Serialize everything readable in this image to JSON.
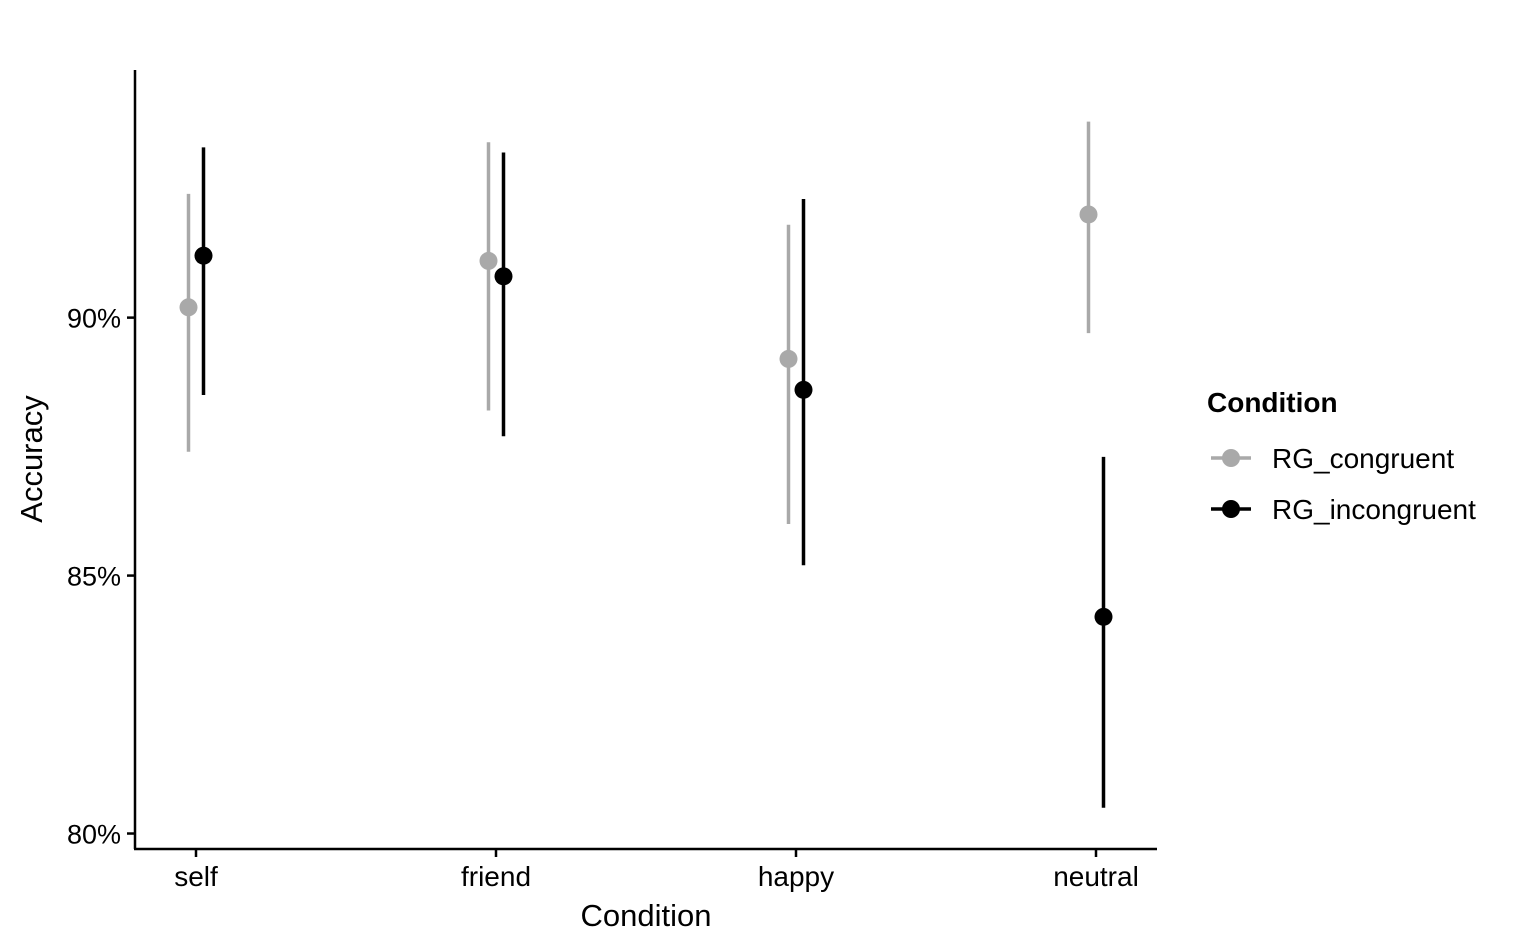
{
  "chart_data": {
    "type": "scatter",
    "subtype": "pointrange",
    "title": "",
    "xlabel": "Condition",
    "ylabel": "Accuracy",
    "categories": [
      "self",
      "friend",
      "happy",
      "neutral"
    ],
    "ylim": [
      79.7,
      94.8
    ],
    "yticks": [
      80,
      85,
      90
    ],
    "ytick_labels": [
      "80%",
      "85%",
      "90%"
    ],
    "grid": false,
    "legend": {
      "title": "Condition",
      "position": "right"
    },
    "series": [
      {
        "name": "RG_congruent",
        "color": "#a9a9a9",
        "values": [
          90.2,
          91.1,
          89.2,
          92.0
        ],
        "lower": [
          87.4,
          88.2,
          86.0,
          89.7
        ],
        "upper": [
          92.4,
          93.4,
          91.8,
          93.8
        ]
      },
      {
        "name": "RG_incongruent",
        "color": "#000000",
        "values": [
          91.2,
          90.8,
          88.6,
          84.2
        ],
        "lower": [
          88.5,
          87.7,
          85.2,
          80.5
        ],
        "upper": [
          93.3,
          93.2,
          92.3,
          87.3
        ]
      }
    ]
  }
}
